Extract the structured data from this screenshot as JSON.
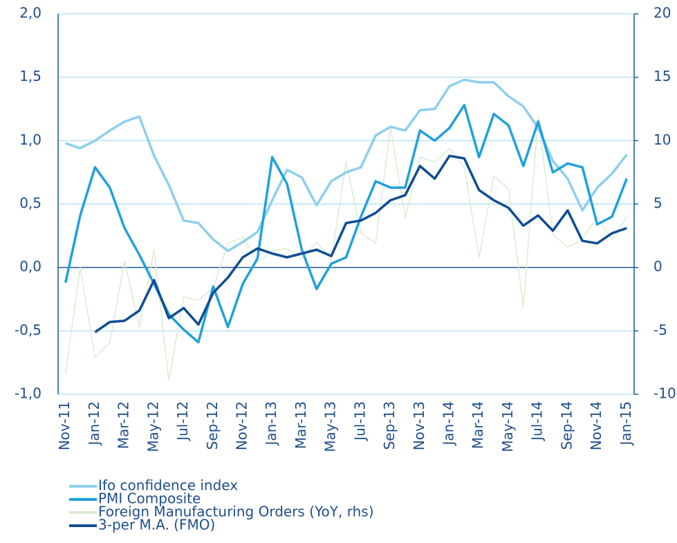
{
  "chart_data": {
    "type": "line",
    "categories": [
      "Nov-11",
      null,
      "Jan-12",
      null,
      "Mar-12",
      null,
      "May-12",
      null,
      "Jul-12",
      null,
      "Sep-12",
      null,
      "Nov-12",
      null,
      "Jan-13",
      null,
      "Mar-13",
      null,
      "May-13",
      null,
      "Jul-13",
      null,
      "Sep-13",
      null,
      "Nov-13",
      null,
      "Jan-14",
      null,
      "Mar-14",
      null,
      "May-14",
      null,
      "Jul-14",
      null,
      "Sep-14",
      null,
      "Nov-14",
      null,
      "Jan-15"
    ],
    "series": [
      {
        "name": "Ifo confidence index",
        "color": "#8dcfee",
        "values": [
          0.98,
          0.94,
          1.0,
          1.08,
          1.15,
          1.19,
          0.88,
          0.65,
          0.37,
          0.35,
          0.22,
          0.13,
          0.2,
          0.28,
          0.53,
          0.77,
          0.71,
          0.49,
          0.68,
          0.75,
          0.79,
          1.04,
          1.11,
          1.08,
          1.24,
          1.25,
          1.43,
          1.48,
          1.46,
          1.46,
          1.35,
          1.27,
          1.1,
          0.84,
          0.7,
          0.45,
          0.63,
          0.74,
          0.89
        ]
      },
      {
        "name": "PMI Composite",
        "color": "#1fa0dc",
        "values": [
          -0.12,
          0.41,
          0.79,
          0.63,
          0.31,
          0.1,
          -0.13,
          -0.37,
          -0.49,
          -0.59,
          -0.15,
          -0.47,
          -0.13,
          0.07,
          0.87,
          0.66,
          0.14,
          -0.17,
          0.03,
          0.08,
          0.4,
          0.68,
          0.63,
          0.63,
          1.08,
          1.0,
          1.1,
          1.28,
          0.87,
          1.21,
          1.12,
          0.8,
          1.15,
          0.75,
          0.82,
          0.79,
          0.34,
          0.4,
          0.7
        ]
      },
      {
        "name": "Foreign Manufacturing Orders (YoY, rhs)",
        "color": "#dcebcf",
        "axis": "y2",
        "values": [
          -8.4,
          0,
          -7.1,
          -5.9,
          0.5,
          -4.7,
          1.4,
          -8.9,
          -2.3,
          -2.6,
          -1.6,
          1.9,
          2.4,
          0.4,
          1.3,
          1.5,
          0.7,
          2.0,
          0.6,
          8.3,
          2.7,
          1.9,
          11.1,
          3.9,
          8.7,
          8.3,
          9.4,
          7.9,
          0.8,
          7.2,
          6.2,
          -3.1,
          11.9,
          2.6,
          1.6,
          2.2,
          4.0,
          2.2,
          4.0
        ]
      },
      {
        "name": "3-per M.A. (FMO)",
        "color": "#0f4d92",
        "axis": "y2",
        "values": [
          null,
          null,
          -5.1,
          -4.3,
          -4.2,
          -3.4,
          -1.0,
          -4.0,
          -3.2,
          -4.5,
          -2.0,
          -0.8,
          0.8,
          1.5,
          1.1,
          0.8,
          1.1,
          1.4,
          0.9,
          3.5,
          3.7,
          4.3,
          5.3,
          5.7,
          8.0,
          7.0,
          8.8,
          8.6,
          6.1,
          5.3,
          4.7,
          3.3,
          4.1,
          2.9,
          4.5,
          2.1,
          1.9,
          2.7,
          3.1
        ]
      }
    ],
    "ylim": [
      -1,
      2
    ],
    "yticks": [
      {
        "value": -1,
        "label": "-1,0"
      },
      {
        "value": -0.5,
        "label": "-0,5"
      },
      {
        "value": 0,
        "label": "0,0"
      },
      {
        "value": 0.5,
        "label": "0,5"
      },
      {
        "value": 1,
        "label": "1,0"
      },
      {
        "value": 1.5,
        "label": "1,5"
      },
      {
        "value": 2,
        "label": "2,0"
      }
    ],
    "y2lim": [
      -10,
      20
    ],
    "y2ticks": [
      -10,
      -5,
      0,
      5,
      10,
      15,
      20
    ],
    "grid": true,
    "legend": "bottom"
  }
}
